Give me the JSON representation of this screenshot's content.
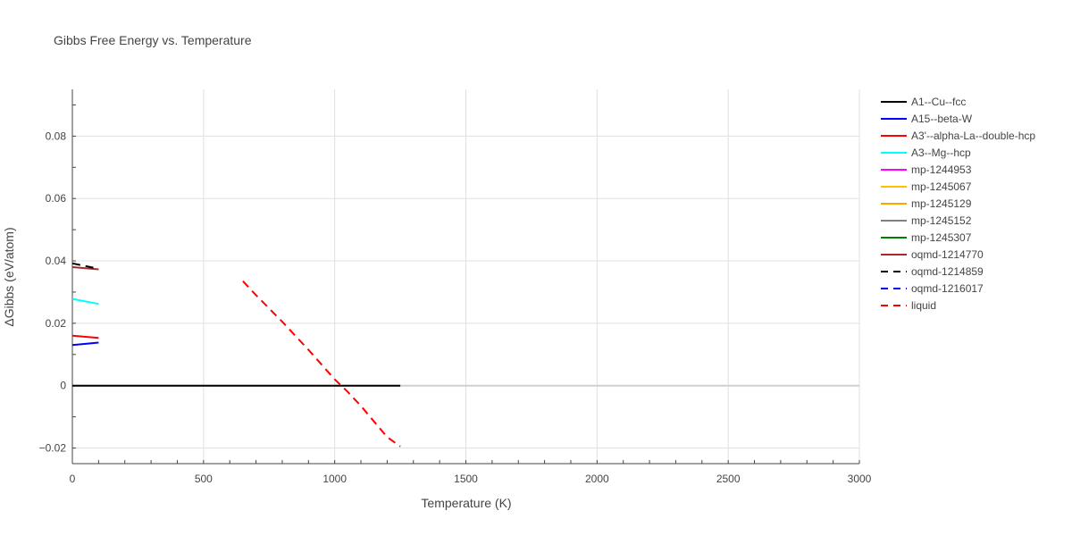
{
  "chart_data": {
    "type": "line",
    "title": "Gibbs Free Energy vs. Temperature",
    "xlabel": "Temperature (K)",
    "ylabel": "ΔGibbs (eV/atom)",
    "xlim": [
      0,
      3000
    ],
    "ylim": [
      -0.025,
      0.095
    ],
    "xticks": [
      0,
      500,
      1000,
      1500,
      2000,
      2500,
      3000
    ],
    "xtick_labels": [
      "0",
      "500",
      "1000",
      "1500",
      "2000",
      "2500",
      "3000"
    ],
    "yticks": [
      -0.02,
      0,
      0.02,
      0.04,
      0.06,
      0.08
    ],
    "ytick_labels": [
      "−0.02",
      "0",
      "0.02",
      "0.04",
      "0.06",
      "0.08"
    ],
    "grid": true,
    "legend_position": "right",
    "series": [
      {
        "name": "A1--Cu--fcc",
        "color": "#000000",
        "dash": "solid",
        "x": [
          0,
          1250
        ],
        "y": [
          0,
          0
        ]
      },
      {
        "name": "A15--beta-W",
        "color": "#0000ff",
        "dash": "solid",
        "x": [
          0,
          100
        ],
        "y": [
          0.013,
          0.0138
        ]
      },
      {
        "name": "A3'--alpha-La--double-hcp",
        "color": "#ff0000",
        "dash": "solid",
        "x": [
          0,
          100
        ],
        "y": [
          0.016,
          0.0153
        ]
      },
      {
        "name": "A3--Mg--hcp",
        "color": "#00ffff",
        "dash": "solid",
        "x": [
          0,
          100
        ],
        "y": [
          0.0278,
          0.0262
        ]
      },
      {
        "name": "mp-1244953",
        "color": "#ff00ff",
        "dash": "solid",
        "x": [],
        "y": []
      },
      {
        "name": "mp-1245067",
        "color": "#ffc000",
        "dash": "solid",
        "x": [],
        "y": []
      },
      {
        "name": "mp-1245129",
        "color": "#ffa500",
        "dash": "solid",
        "x": [],
        "y": []
      },
      {
        "name": "mp-1245152",
        "color": "#808080",
        "dash": "solid",
        "x": [],
        "y": []
      },
      {
        "name": "mp-1245307",
        "color": "#008000",
        "dash": "solid",
        "x": [],
        "y": []
      },
      {
        "name": "oqmd-1214770",
        "color": "#a52a2a",
        "dash": "solid",
        "x": [
          0,
          100
        ],
        "y": [
          0.038,
          0.0373
        ]
      },
      {
        "name": "oqmd-1214859",
        "color": "#000000",
        "dash": "dash",
        "x": [
          0,
          100
        ],
        "y": [
          0.0392,
          0.0375
        ]
      },
      {
        "name": "oqmd-1216017",
        "color": "#0000ff",
        "dash": "dash",
        "x": [],
        "y": []
      },
      {
        "name": "liquid",
        "color": "#ff0000",
        "dash": "dash",
        "x": [
          650,
          700,
          800,
          900,
          1000,
          1050,
          1100,
          1200,
          1250
        ],
        "y": [
          0.0335,
          0.029,
          0.0205,
          0.0115,
          0.002,
          -0.002,
          -0.0065,
          -0.0165,
          -0.0195
        ]
      }
    ]
  }
}
